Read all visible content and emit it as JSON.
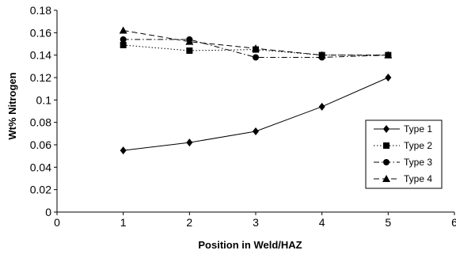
{
  "chart_data": {
    "type": "line",
    "xlabel": "Position in Weld/HAZ",
    "ylabel": "Wt% Nitrogen",
    "xlim": [
      0,
      6
    ],
    "ylim": [
      0,
      0.18
    ],
    "x_ticks": [
      "0",
      "1",
      "2",
      "3",
      "4",
      "5",
      "6"
    ],
    "y_ticks": [
      "0",
      "0.02",
      "0.04",
      "0.06",
      "0.08",
      "0.1",
      "0.12",
      "0.14",
      "0.16",
      "0.18"
    ],
    "x": [
      1,
      2,
      3,
      4,
      5
    ],
    "grid": false,
    "legend_position": "right",
    "series": [
      {
        "name": "Type 1",
        "values": [
          0.055,
          0.062,
          0.072,
          0.094,
          0.12
        ],
        "marker": "diamond",
        "line": "solid"
      },
      {
        "name": "Type 2",
        "values": [
          0.149,
          0.144,
          0.145,
          0.14,
          0.14
        ],
        "marker": "square",
        "line": "dotted"
      },
      {
        "name": "Type 3",
        "values": [
          0.154,
          0.154,
          0.138,
          0.138,
          0.14
        ],
        "marker": "circle",
        "line": "dashdot"
      },
      {
        "name": "Type 4",
        "values": [
          0.162,
          0.152,
          0.146,
          0.14,
          0.14
        ],
        "marker": "triangle",
        "line": "dashed"
      }
    ],
    "colors": {
      "line": "#000000",
      "background": "#ffffff"
    }
  }
}
